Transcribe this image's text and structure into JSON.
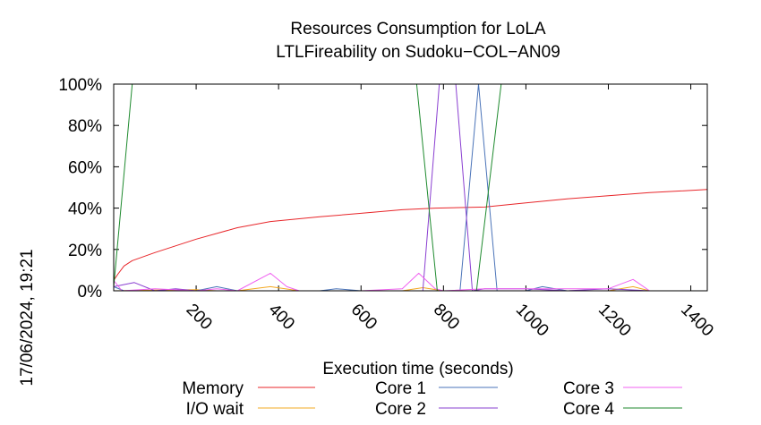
{
  "chart_data": {
    "type": "line",
    "title": "Resources Consumption for LoLA",
    "subtitle": "LTLFireability on Sudoku−COL−AN09",
    "xlabel": "Execution time (seconds)",
    "ylabel": "",
    "timestamp": "17/06/2024, 19:21",
    "xlim": [
      0,
      1440
    ],
    "ylim": [
      0,
      100
    ],
    "x_ticks": [
      200,
      400,
      600,
      800,
      1000,
      1200,
      1400
    ],
    "y_ticks": [
      {
        "value": 0,
        "label": "0%"
      },
      {
        "value": 20,
        "label": "20%"
      },
      {
        "value": 40,
        "label": "40%"
      },
      {
        "value": 60,
        "label": "60%"
      },
      {
        "value": 80,
        "label": "80%"
      },
      {
        "value": 100,
        "label": "100%"
      }
    ],
    "grid": false,
    "legend_position": "bottom",
    "series": [
      {
        "name": "Memory",
        "color": "#e8262a",
        "points": [
          [
            0,
            5
          ],
          [
            10,
            8
          ],
          [
            25,
            12
          ],
          [
            45,
            14.6
          ],
          [
            100,
            18.5
          ],
          [
            200,
            25
          ],
          [
            300,
            30.5
          ],
          [
            380,
            33.5
          ],
          [
            500,
            35.8
          ],
          [
            600,
            37.5
          ],
          [
            700,
            39.2
          ],
          [
            780,
            40
          ],
          [
            900,
            40.5
          ],
          [
            1000,
            42.5
          ],
          [
            1100,
            44.5
          ],
          [
            1200,
            46
          ],
          [
            1300,
            47.5
          ],
          [
            1440,
            49
          ]
        ]
      },
      {
        "name": "I/O wait",
        "color": "#f3a821",
        "points": [
          [
            0,
            0
          ],
          [
            100,
            0.3
          ],
          [
            200,
            0.5
          ],
          [
            250,
            0
          ],
          [
            300,
            0
          ],
          [
            380,
            2
          ],
          [
            450,
            0
          ],
          [
            600,
            0
          ],
          [
            700,
            0
          ],
          [
            750,
            1.5
          ],
          [
            800,
            0
          ],
          [
            900,
            0
          ],
          [
            1000,
            0
          ],
          [
            1200,
            0
          ],
          [
            1260,
            2
          ],
          [
            1300,
            0
          ],
          [
            1440,
            0
          ]
        ]
      },
      {
        "name": "Core 1",
        "color": "#4a73b8",
        "points": [
          [
            0,
            2
          ],
          [
            25,
            0
          ],
          [
            100,
            0
          ],
          [
            200,
            0
          ],
          [
            250,
            2
          ],
          [
            300,
            0
          ],
          [
            400,
            0
          ],
          [
            500,
            0
          ],
          [
            540,
            1
          ],
          [
            600,
            0
          ],
          [
            700,
            0
          ],
          [
            800,
            0
          ],
          [
            840,
            0
          ],
          [
            885,
            100
          ],
          [
            930,
            0
          ],
          [
            1000,
            0
          ],
          [
            1040,
            2
          ],
          [
            1100,
            0
          ],
          [
            1200,
            0
          ],
          [
            1300,
            0
          ],
          [
            1440,
            0
          ]
        ]
      },
      {
        "name": "Core 2",
        "color": "#8a3fd1",
        "points": [
          [
            0,
            2
          ],
          [
            50,
            4
          ],
          [
            100,
            0
          ],
          [
            150,
            1
          ],
          [
            200,
            0
          ],
          [
            300,
            0
          ],
          [
            400,
            0
          ],
          [
            500,
            0
          ],
          [
            600,
            0
          ],
          [
            700,
            0
          ],
          [
            750,
            0
          ],
          [
            790,
            100
          ],
          [
            830,
            100
          ],
          [
            870,
            0
          ],
          [
            900,
            1
          ],
          [
            1000,
            1
          ],
          [
            1100,
            0
          ],
          [
            1200,
            1
          ],
          [
            1300,
            0
          ],
          [
            1440,
            0
          ]
        ]
      },
      {
        "name": "Core 3",
        "color": "#f060f0",
        "points": [
          [
            0,
            5
          ],
          [
            20,
            0
          ],
          [
            100,
            1
          ],
          [
            200,
            0
          ],
          [
            250,
            1
          ],
          [
            300,
            0
          ],
          [
            380,
            8.5
          ],
          [
            420,
            2
          ],
          [
            450,
            0
          ],
          [
            600,
            0
          ],
          [
            700,
            1
          ],
          [
            740,
            8.5
          ],
          [
            780,
            1
          ],
          [
            800,
            0
          ],
          [
            900,
            1
          ],
          [
            1000,
            1
          ],
          [
            1100,
            1
          ],
          [
            1200,
            1
          ],
          [
            1260,
            5.5
          ],
          [
            1300,
            0
          ],
          [
            1440,
            0
          ]
        ]
      },
      {
        "name": "Core 4",
        "color": "#1e8a2e",
        "points": [
          [
            0,
            2
          ],
          [
            45,
            100
          ],
          [
            300,
            100
          ],
          [
            600,
            100
          ],
          [
            735,
            100
          ],
          [
            785,
            0
          ],
          [
            830,
            0
          ],
          [
            880,
            0
          ],
          [
            940,
            100
          ],
          [
            1100,
            100
          ],
          [
            1300,
            100
          ],
          [
            1440,
            100
          ]
        ]
      }
    ]
  }
}
